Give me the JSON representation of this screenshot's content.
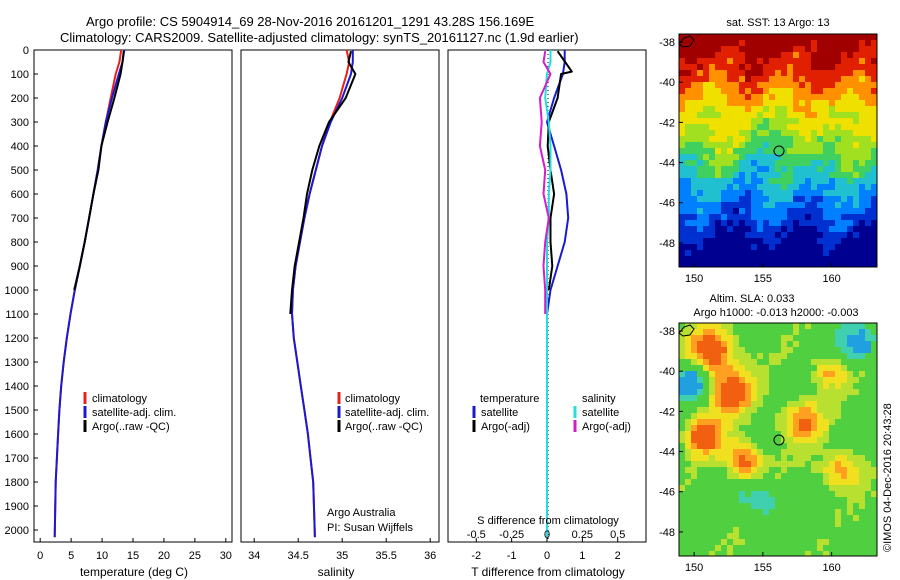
{
  "title": {
    "line1": "Argo profile: CS 5904914_69 28-Nov-2016 20161201_1291 43.28S 156.169E",
    "line2": "Climatology: CARS2009. Satellite-adjusted climatology: synTS_20161127.nc (1.9d earlier)"
  },
  "colors": {
    "climatology": "#e8201c",
    "satellite": "#1a1ad0",
    "argo": "#000000",
    "sal_satellite": "#22dddd",
    "sal_argo": "#d21ec8",
    "frame": "#000000"
  },
  "credits": {
    "argo_australia": "Argo Australia",
    "pi": "PI: Susan Wijffels",
    "imos": "©IMOS 04-Dec-2016 20:43:28"
  },
  "chart_data": [
    {
      "type": "line",
      "id": "temperature",
      "xlabel": "temperature (deg C)",
      "ylabel": "",
      "xlim": [
        -1,
        31
      ],
      "ylim": [
        2050,
        0
      ],
      "xticks": [
        0,
        5,
        10,
        15,
        20,
        25,
        30
      ],
      "yticks": [
        0,
        100,
        200,
        300,
        400,
        500,
        600,
        700,
        800,
        900,
        1000,
        1100,
        1200,
        1300,
        1400,
        1500,
        1600,
        1700,
        1800,
        1900,
        2000
      ],
      "legend": [
        "climatology",
        "satellite-adj. clim.",
        "Argo(..raw -QC)"
      ],
      "legend_position": "lower-center",
      "series": [
        {
          "name": "climatology",
          "color": "#e8201c",
          "x": [
            13.1,
            12.8,
            12.2,
            11.4,
            10.6,
            9.9,
            9.3,
            8.6,
            7.9,
            7.2,
            6.4,
            5.6,
            4.9,
            4.3,
            3.8,
            3.4,
            3.1,
            2.9,
            2.7,
            2.5,
            2.35
          ],
          "y": [
            0,
            50,
            100,
            200,
            300,
            400,
            500,
            600,
            700,
            800,
            900,
            1000,
            1100,
            1200,
            1300,
            1400,
            1500,
            1600,
            1700,
            1800,
            2030
          ]
        },
        {
          "name": "satellite-adj. clim.",
          "color": "#1a1ad0",
          "x": [
            13.6,
            13.3,
            12.7,
            11.6,
            10.6,
            9.9,
            9.3,
            8.6,
            7.9,
            7.2,
            6.4,
            5.6,
            4.9,
            4.3,
            3.8,
            3.4,
            3.1,
            2.9,
            2.7,
            2.5,
            2.35
          ],
          "y": [
            0,
            50,
            100,
            200,
            300,
            400,
            500,
            600,
            700,
            800,
            900,
            1000,
            1100,
            1200,
            1300,
            1400,
            1500,
            1600,
            1700,
            1800,
            2030
          ]
        },
        {
          "name": "Argo(..raw -QC)",
          "color": "#000000",
          "x": [
            13.5,
            13.3,
            13.0,
            12.0,
            10.9,
            9.9,
            9.4,
            8.6,
            7.9,
            7.2,
            6.4,
            5.5
          ],
          "y": [
            5,
            50,
            100,
            200,
            300,
            400,
            500,
            600,
            700,
            800,
            900,
            1000
          ]
        }
      ]
    },
    {
      "type": "line",
      "id": "salinity",
      "xlabel": "salinity",
      "ylabel": "",
      "xlim": [
        33.85,
        36.1
      ],
      "ylim": [
        2050,
        0
      ],
      "xticks": [
        34,
        34.5,
        35,
        35.5,
        36
      ],
      "legend": [
        "climatology",
        "satellite-adj. clim.",
        "Argo(..raw -QC)"
      ],
      "legend_position": "lower-right",
      "series": [
        {
          "name": "climatology",
          "color": "#e8201c",
          "x": [
            35.05,
            35.08,
            35.05,
            34.97,
            34.86,
            34.77,
            34.7,
            34.63,
            34.57,
            34.52,
            34.47,
            34.44,
            34.43,
            34.45,
            34.49,
            34.53,
            34.57,
            34.61,
            34.64,
            34.67,
            34.69
          ],
          "y": [
            0,
            50,
            100,
            200,
            300,
            400,
            500,
            600,
            700,
            800,
            900,
            1000,
            1100,
            1200,
            1300,
            1400,
            1500,
            1600,
            1700,
            1800,
            2030
          ]
        },
        {
          "name": "satellite-adj. clim.",
          "color": "#1a1ad0",
          "x": [
            35.12,
            35.12,
            35.1,
            35.0,
            34.87,
            34.77,
            34.7,
            34.63,
            34.57,
            34.52,
            34.47,
            34.44,
            34.43,
            34.45,
            34.49,
            34.53,
            34.57,
            34.61,
            34.64,
            34.67,
            34.69
          ],
          "y": [
            0,
            50,
            100,
            200,
            300,
            400,
            500,
            600,
            700,
            800,
            900,
            1000,
            1100,
            1200,
            1300,
            1400,
            1500,
            1600,
            1700,
            1800,
            2030
          ]
        },
        {
          "name": "Argo(..raw -QC)",
          "color": "#000000",
          "x": [
            35.1,
            35.07,
            35.15,
            35.04,
            34.85,
            34.74,
            34.66,
            34.6,
            34.56,
            34.51,
            34.46,
            34.43,
            34.41
          ],
          "y": [
            5,
            50,
            100,
            200,
            300,
            400,
            500,
            600,
            700,
            800,
            900,
            1000,
            1100
          ]
        }
      ]
    },
    {
      "type": "line",
      "id": "difference",
      "xlabel": "T difference from climatology",
      "xlabel_top": "S difference from climatology",
      "ylabel": "",
      "xlim": [
        -2.8,
        2.8
      ],
      "ylim": [
        2050,
        0
      ],
      "xticks": [
        -2,
        -1,
        0,
        1,
        2
      ],
      "xticks_top": [
        "-0.5",
        "-0.25",
        "0",
        "0.25",
        "0.5"
      ],
      "legend": [
        "temperature",
        "satellite",
        "Argo(-adj)",
        "salinity",
        "satellite",
        "Argo(-adj)"
      ],
      "legend_position": "lower-center",
      "series": [
        {
          "name": "satellite",
          "group": "temperature",
          "color": "#1a1ad0",
          "x": [
            0.5,
            0.5,
            0.45,
            0.2,
            0.0,
            0.2,
            0.4,
            0.55,
            0.6,
            0.5,
            0.3,
            0.1,
            0.0,
            0.0,
            0.0,
            0.0,
            0.0,
            0.0,
            0.0,
            0.0,
            0.0
          ],
          "y": [
            0,
            50,
            100,
            200,
            300,
            400,
            500,
            600,
            700,
            800,
            900,
            1000,
            1100,
            1200,
            1300,
            1400,
            1500,
            1600,
            1700,
            1800,
            2030
          ]
        },
        {
          "name": "Argo(-adj)",
          "group": "temperature",
          "color": "#000000",
          "x": [
            0.3,
            0.7,
            0.4,
            0.3,
            0.05,
            0.02,
            0.1,
            0.2,
            0.1,
            0.1,
            0.15,
            0.05
          ],
          "y": [
            5,
            90,
            100,
            200,
            300,
            400,
            500,
            600,
            700,
            800,
            900,
            1000
          ]
        },
        {
          "name": "satellite",
          "group": "salinity",
          "color": "#22dddd",
          "x": [
            0.1,
            0.1,
            0.0,
            -0.05,
            0.05,
            0.1,
            0.1,
            0.05,
            0.05,
            0.0,
            0.0,
            0.0,
            0.0,
            0.0,
            0.0,
            0.0,
            0.0,
            0.0,
            0.0,
            0.0,
            0.0
          ],
          "y": [
            0,
            50,
            100,
            200,
            300,
            400,
            500,
            600,
            700,
            800,
            900,
            1000,
            1100,
            1200,
            1300,
            1400,
            1500,
            1600,
            1700,
            1800,
            2030
          ]
        },
        {
          "name": "Argo(-adj)",
          "group": "salinity",
          "color": "#d21ec8",
          "x": [
            -0.05,
            -0.1,
            0.1,
            -0.2,
            -0.15,
            -0.2,
            -0.05,
            -0.1,
            0.05,
            -0.05,
            -0.1,
            -0.05,
            -0.05
          ],
          "y": [
            5,
            50,
            100,
            200,
            300,
            400,
            500,
            600,
            700,
            800,
            900,
            1000,
            1100
          ]
        }
      ]
    }
  ],
  "maps": [
    {
      "id": "sst_map",
      "title": "sat. SST: 13 Argo: 13",
      "lon_ticks": [
        150,
        155,
        160
      ],
      "lat_ticks": [
        -38,
        -40,
        -42,
        -44,
        -46,
        -48
      ],
      "lonlim": [
        148.9,
        163.3
      ],
      "latlim": [
        -49.2,
        -37.6
      ],
      "profile_lon": 156.169,
      "profile_lat": -43.28,
      "colorscale": [
        "#000090",
        "#0030d0",
        "#0080ff",
        "#20c0d0",
        "#40d060",
        "#a0e020",
        "#f0e000",
        "#ff9000",
        "#e02000",
        "#a00000"
      ]
    },
    {
      "id": "sla_map",
      "title_line1": "Altim. SLA: 0.033",
      "title_line2": "Argo h1000: -0.013 h2000: -0.003",
      "lon_ticks": [
        150,
        155,
        160
      ],
      "lat_ticks": [
        -38,
        -40,
        -42,
        -44,
        -46,
        -48
      ],
      "lonlim": [
        148.9,
        163.3
      ],
      "latlim": [
        -49.2,
        -37.6
      ],
      "profile_lon": 156.169,
      "profile_lat": -43.28
    }
  ]
}
